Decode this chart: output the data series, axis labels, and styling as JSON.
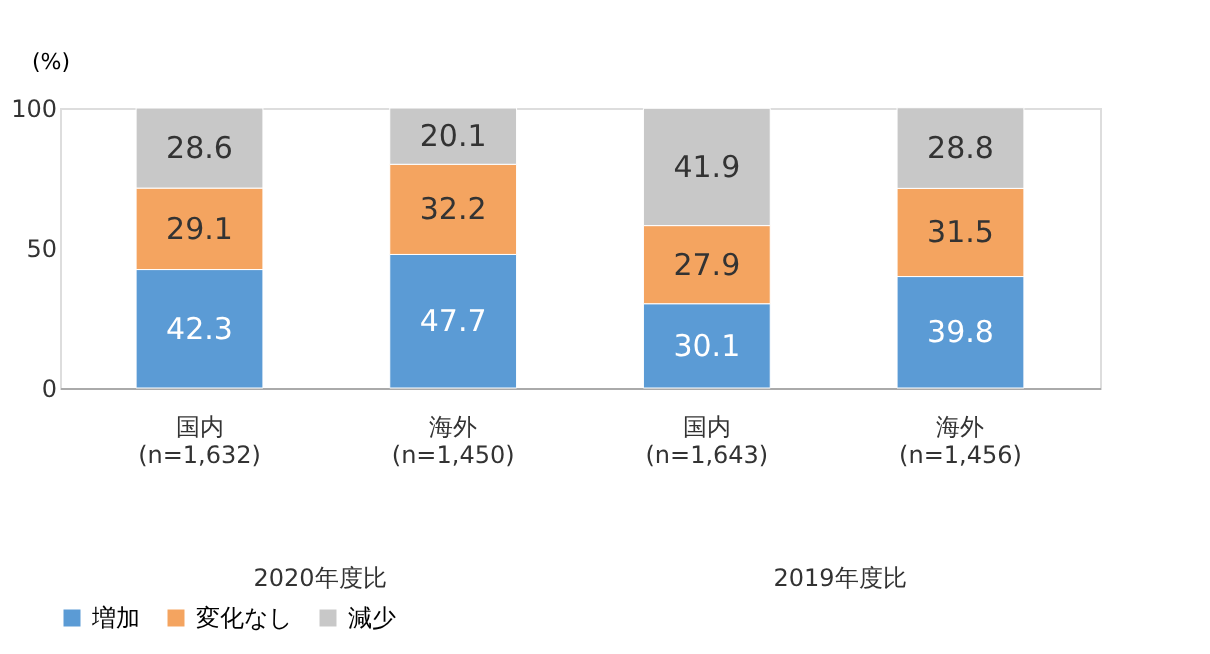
{
  "chart_data": {
    "type": "bar",
    "stacked": true,
    "ylabel": "(%)",
    "categories": [
      "国内\n(n=1,632)",
      "海外\n(n=1,450)",
      "国内\n(n=1,643)",
      "海外\n(n=1,456)"
    ],
    "series": [
      {
        "name": "増加",
        "color": "#5b9bd5",
        "values": [
          42.3,
          47.7,
          30.1,
          39.8
        ]
      },
      {
        "name": "変化なし",
        "color": "#f4a460",
        "values": [
          29.1,
          32.2,
          27.9,
          31.5
        ]
      },
      {
        "name": "減少",
        "color": "#c8c8c8",
        "values": [
          28.6,
          20.1,
          41.9,
          28.8
        ]
      }
    ],
    "ylim": [
      0,
      100
    ],
    "yticks": [
      0,
      50,
      100
    ],
    "grid": false,
    "legend": "bottom",
    "data_labels": true,
    "annotations": [
      "2020年度比",
      "2019年度比"
    ]
  }
}
